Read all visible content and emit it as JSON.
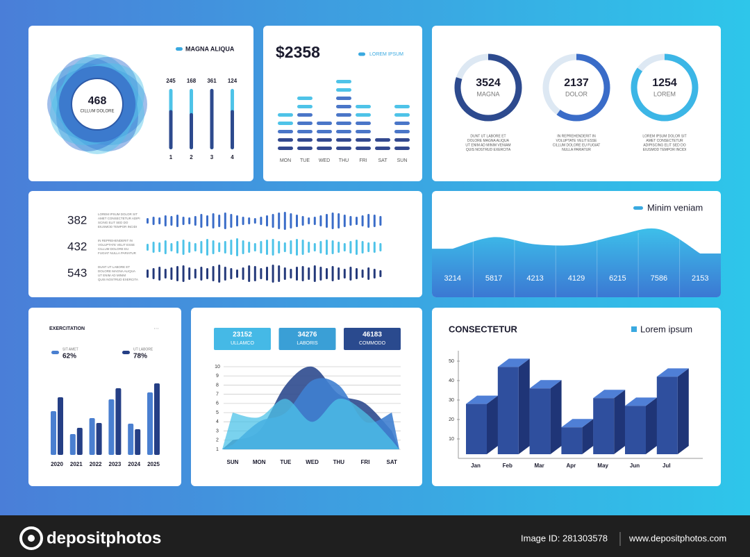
{
  "panel_flower": {
    "legend": "MAGNA ALIQUA",
    "center_value": 468,
    "center_label": "CILLUM DOLORE",
    "bars": {
      "categories": [
        "1",
        "2",
        "3",
        "4"
      ],
      "values": [
        245,
        168,
        361,
        124
      ],
      "fill_percent": [
        65,
        60,
        100,
        65
      ]
    }
  },
  "panel_weekly": {
    "amount": "$2358",
    "legend": "LOREM IPSUM",
    "categories": [
      "MON",
      "TUE",
      "WED",
      "THU",
      "FRI",
      "SAT",
      "SUN"
    ],
    "values": [
      5,
      7,
      4,
      9,
      6,
      2,
      6
    ]
  },
  "panel_rings": {
    "items": [
      {
        "value": 3524,
        "label": "MAGNA",
        "percent": 80,
        "color": "#2d4a8e",
        "text": [
          "DUNT UT LABORE ET",
          "DOLORE MAGNA ALIQUA",
          "UT ENIM AD MINIM VENIAM",
          "QUIS NOSTRUD EXERCITA"
        ]
      },
      {
        "value": 2137,
        "label": "DOLOR",
        "percent": 60,
        "color": "#3a6cc8",
        "text": [
          "IN REPREHENDERIT IN",
          "VOLUPTATE VELIT ESSE",
          "CILLUM DOLORE EU FUGIAT",
          "NULLA PARIATUR"
        ]
      },
      {
        "value": 1254,
        "label": "LOREM",
        "percent": 85,
        "color": "#3cb6e6",
        "text": [
          "LOREM IPSUM DOLOR SIT",
          "AMET CONSECTETUR",
          "ADIPISCING ELIT SED DO",
          "EIUSMOD TEMPOR INCIDI"
        ]
      }
    ]
  },
  "panel_waves": {
    "rows": [
      {
        "value": 382,
        "color": "#3a6cc8",
        "text": [
          "LOREM IPSUM DOLOR SIT",
          "AMET CONSECTETUR ADIPI",
          "SCING ELIT SED DO",
          "EIUSMOD TEMPOR INCIDI"
        ],
        "bars": [
          8,
          12,
          10,
          16,
          14,
          18,
          12,
          10,
          14,
          20,
          16,
          22,
          18,
          24,
          20,
          16,
          12,
          10,
          8,
          12,
          16,
          20,
          24,
          26,
          22,
          18,
          14,
          10,
          12,
          16,
          20,
          24,
          22,
          18,
          14,
          12,
          16,
          20,
          18,
          14
        ]
      },
      {
        "value": 432,
        "color": "#4ec3e8",
        "text": [
          "IN REPREHENDERIT IN",
          "VOLUPTATE VELIT ESSE",
          "CILLUM DOLORE EU",
          "FUGIAT NULLA PARIATUR"
        ],
        "bars": [
          10,
          16,
          14,
          20,
          12,
          18,
          22,
          16,
          12,
          18,
          24,
          20,
          14,
          18,
          22,
          26,
          20,
          16,
          12,
          18,
          22,
          24,
          18,
          14,
          20,
          24,
          22,
          16,
          12,
          18,
          22,
          20,
          16,
          12,
          18,
          22,
          18,
          14,
          16,
          12
        ]
      },
      {
        "value": 543,
        "color": "#24397a",
        "text": [
          "DUNT UT LABORE ET",
          "DOLORE MAGNA ALIQUA",
          "UT ENIM AD MINIM",
          "QUIS NOSTRUD EXERCITA"
        ],
        "bars": [
          12,
          16,
          20,
          14,
          18,
          22,
          24,
          18,
          14,
          20,
          16,
          22,
          26,
          20,
          16,
          12,
          18,
          24,
          22,
          16,
          20,
          26,
          24,
          18,
          14,
          20,
          22,
          18,
          24,
          20,
          16,
          22,
          18,
          14,
          20,
          16,
          12,
          18,
          14,
          10
        ]
      }
    ]
  },
  "panel_area": {
    "legend": "Minim veniam",
    "values": [
      3214,
      5817,
      4213,
      4129,
      6215,
      7586,
      2153
    ]
  },
  "panel_exercitation": {
    "title": "EXERCITATION",
    "menu": "...",
    "categories": [
      "2020",
      "2021",
      "2022",
      "2023",
      "2024",
      "2025"
    ],
    "ylim": [
      0,
      110
    ],
    "series": [
      {
        "name": "SIT AMET",
        "total": 62,
        "total_label": "62%",
        "color": "#4a7fd0",
        "values": [
          63,
          30,
          53,
          80,
          45,
          90
        ]
      },
      {
        "name": "UT LABORE",
        "total": 78,
        "total_label": "78%",
        "color": "#253f85",
        "values": [
          83,
          39,
          46,
          96,
          37,
          103
        ]
      }
    ]
  },
  "panel_days": {
    "stats": [
      {
        "value": 23152,
        "label": "ULLAMCO",
        "color": "#45b9e6"
      },
      {
        "value": 34276,
        "label": "LABORIS",
        "color": "#3a9fd6"
      },
      {
        "value": 46183,
        "label": "COMMODO",
        "color": "#2a4a8e"
      }
    ],
    "categories": [
      "SUN",
      "MON",
      "TUE",
      "WED",
      "THU",
      "FRI",
      "SAT"
    ],
    "ylim": [
      1,
      10
    ],
    "yticks": [
      1,
      2,
      3,
      4,
      5,
      6,
      7,
      8,
      9,
      10
    ],
    "grid": true,
    "series": [
      {
        "color": "#2d4a8e",
        "values": [
          2,
          3,
          8,
          10,
          7,
          6,
          3
        ]
      },
      {
        "color": "#3f7fd0",
        "values": [
          1.5,
          4,
          5,
          8.5,
          8,
          4,
          5
        ]
      },
      {
        "color": "#4ec3e8",
        "values": [
          5,
          4.5,
          6.5,
          4,
          6.5,
          5,
          2
        ]
      }
    ]
  },
  "panel_3d": {
    "title": "CONSECTETUR",
    "legend": "Lorem ipsum",
    "categories": [
      "Jan",
      "Feb",
      "Mar",
      "Apr",
      "May",
      "Jun",
      "Jul"
    ],
    "values": [
      28,
      47,
      36,
      16,
      31,
      27,
      42
    ],
    "ylim": [
      0,
      55
    ],
    "yticks": [
      10,
      20,
      30,
      40,
      50
    ]
  },
  "footer": {
    "brand": "depositphotos",
    "image_id": "Image ID: 281303578",
    "site": "www.depositphotos.com"
  }
}
